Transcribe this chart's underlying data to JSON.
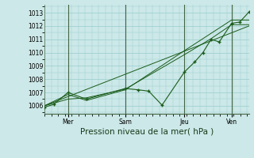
{
  "background_color": "#cce8e8",
  "grid_color": "#99cccc",
  "line_color": "#1a5c1a",
  "title": "Pression niveau de la mer( hPa )",
  "ylim": [
    1005.4,
    1013.6
  ],
  "yticks": [
    1006,
    1007,
    1008,
    1009,
    1010,
    1011,
    1012,
    1013
  ],
  "xlim": [
    0,
    1.0
  ],
  "day_positions": [
    0.115,
    0.395,
    0.685,
    0.915
  ],
  "day_labels": [
    "Mer",
    "Sam",
    "Jeu",
    "Ven"
  ],
  "line1_x": [
    0.0,
    0.045,
    0.115,
    0.205,
    0.395,
    0.46,
    0.51,
    0.575,
    0.685,
    0.735,
    0.775,
    0.815,
    0.855,
    0.915,
    0.955,
    1.0
  ],
  "line1_y": [
    1005.9,
    1006.1,
    1007.0,
    1006.5,
    1007.3,
    1007.2,
    1007.1,
    1006.05,
    1008.55,
    1009.3,
    1010.0,
    1011.0,
    1010.8,
    1012.2,
    1012.3,
    1013.05
  ],
  "line2_x": [
    0.0,
    0.115,
    0.205,
    0.395,
    0.685,
    0.815,
    0.915,
    1.0
  ],
  "line2_y": [
    1006.0,
    1006.5,
    1006.6,
    1007.25,
    1009.85,
    1011.05,
    1012.1,
    1012.1
  ],
  "line3_x": [
    0.0,
    0.115,
    0.205,
    0.395,
    0.685,
    0.815,
    0.915,
    1.0
  ],
  "line3_y": [
    1006.0,
    1006.85,
    1006.4,
    1007.2,
    1010.15,
    1011.45,
    1012.45,
    1012.45
  ],
  "line4_x": [
    0.0,
    1.0
  ],
  "line4_y": [
    1006.0,
    1012.0
  ]
}
